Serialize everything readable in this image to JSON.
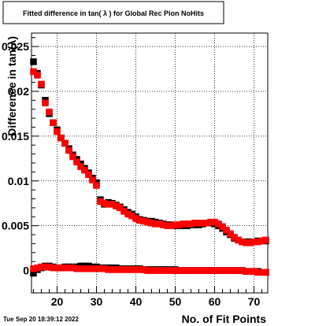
{
  "chart_data": {
    "type": "scatter",
    "title": "Fitted difference in tan( λ ) for Global Rec Pion NoHits",
    "xlabel": "No. of Fit Points",
    "ylabel": "Difference in tan(λ)",
    "xlim": [
      13.5,
      73.5
    ],
    "ylim": [
      -0.0025,
      0.0265
    ],
    "x_ticks": [
      20,
      30,
      40,
      50,
      60,
      70
    ],
    "y_ticks": [
      0,
      0.005,
      0.01,
      0.015,
      0.02,
      0.025
    ],
    "y_tick_labels": [
      "0",
      "0.005",
      "0.01",
      "0.015",
      "0.02",
      "0.025"
    ],
    "grid": true,
    "timestamp": "Tue Sep 20 18:39:12 2022",
    "series": [
      {
        "color": "#000000",
        "x": [
          14,
          15,
          16,
          17,
          18,
          19,
          20,
          21,
          22,
          23,
          24,
          25,
          26,
          27,
          28,
          29,
          30,
          31,
          32,
          33,
          34,
          35,
          36,
          37,
          38,
          39,
          40,
          41,
          42,
          43,
          44,
          45,
          46,
          47,
          48,
          49,
          50,
          51,
          52,
          53,
          54,
          55,
          56,
          57,
          58,
          59,
          60,
          61,
          62,
          63,
          64,
          65,
          66,
          67,
          68,
          69,
          70,
          71,
          72,
          73
        ],
        "y": [
          0.0233,
          0.022,
          0.0207,
          0.019,
          0.0175,
          0.0165,
          0.0157,
          0.0148,
          0.0142,
          0.0136,
          0.0129,
          0.0124,
          0.0119,
          0.0114,
          0.0109,
          0.0103,
          0.0098,
          0.0079,
          0.0074,
          0.0076,
          0.0075,
          0.0073,
          0.0071,
          0.0068,
          0.0065,
          0.0063,
          0.006,
          0.0057,
          0.0056,
          0.0055,
          0.0055,
          0.0054,
          0.0053,
          0.0052,
          0.0051,
          0.0051,
          0.005,
          0.005,
          0.005,
          0.005,
          0.0051,
          0.0051,
          0.0051,
          0.0052,
          0.0053,
          0.0053,
          0.0052,
          0.005,
          0.0047,
          0.0043,
          0.004,
          0.0036,
          0.0034,
          0.0032,
          0.0032,
          0.0032,
          0.0032,
          0.0033,
          0.0033,
          0.0033
        ]
      },
      {
        "color": "#ff0000",
        "x": [
          14,
          15,
          16,
          17,
          18,
          19,
          20,
          21,
          22,
          23,
          24,
          25,
          26,
          27,
          28,
          29,
          30,
          31,
          32,
          33,
          34,
          35,
          36,
          37,
          38,
          39,
          40,
          41,
          42,
          43,
          44,
          45,
          46,
          47,
          48,
          49,
          50,
          51,
          52,
          53,
          54,
          55,
          56,
          57,
          58,
          59,
          60,
          61,
          62,
          63,
          64,
          65,
          66,
          67,
          68,
          69,
          70,
          71,
          72,
          73
        ],
        "y": [
          0.0222,
          0.0218,
          0.0208,
          0.0187,
          0.0177,
          0.0165,
          0.0155,
          0.0148,
          0.0142,
          0.0134,
          0.0127,
          0.0121,
          0.0116,
          0.0112,
          0.0107,
          0.0101,
          0.0095,
          0.0077,
          0.0075,
          0.0074,
          0.0074,
          0.0072,
          0.007,
          0.0066,
          0.0063,
          0.0061,
          0.0058,
          0.0056,
          0.0055,
          0.0054,
          0.0053,
          0.0052,
          0.0052,
          0.0051,
          0.005,
          0.005,
          0.0051,
          0.0051,
          0.0052,
          0.0052,
          0.0052,
          0.0053,
          0.0053,
          0.0053,
          0.0053,
          0.0054,
          0.0054,
          0.0052,
          0.0049,
          0.0045,
          0.0041,
          0.0037,
          0.0034,
          0.0032,
          0.0031,
          0.0031,
          0.0032,
          0.0032,
          0.0033,
          0.0034
        ]
      },
      {
        "color": "#000000",
        "x": [
          14,
          15,
          16,
          17,
          18,
          19,
          20,
          21,
          22,
          23,
          24,
          25,
          26,
          27,
          28,
          29,
          30,
          31,
          32,
          33,
          34,
          35,
          36,
          37,
          38,
          39,
          40,
          41,
          42,
          43,
          44,
          45,
          46,
          47,
          48,
          49,
          50,
          51,
          52,
          53,
          54,
          55,
          56,
          57,
          58,
          59,
          60,
          61,
          62,
          63,
          64,
          65,
          66,
          67,
          68,
          69,
          70,
          71,
          72,
          73
        ],
        "y": [
          -0.0003,
          0.0001,
          0.0003,
          0.0005,
          0.0005,
          0.0004,
          0.0003,
          0.0003,
          0.0004,
          0.0004,
          0.0004,
          0.0004,
          0.0005,
          0.0005,
          0.0005,
          0.0004,
          0.0004,
          0.0003,
          0.0003,
          0.0003,
          0.0003,
          0.0003,
          0.0002,
          0.0002,
          0.0002,
          0.0002,
          0.0002,
          0.0002,
          0.0001,
          0.0001,
          0.0001,
          0.0001,
          0.0001,
          0.0001,
          0.0001,
          0.0001,
          0.0001,
          0.0,
          0.0,
          0.0,
          0.0,
          0.0,
          0.0,
          0.0,
          0.0,
          0.0,
          0.0,
          0.0,
          0.0,
          0.0,
          0.0,
          0.0,
          0.0,
          0.0,
          -0.0001,
          -0.0001,
          -0.0001,
          -0.0001,
          -0.0002,
          -0.0002
        ]
      },
      {
        "color": "#ff0000",
        "x": [
          14,
          15,
          16,
          17,
          18,
          19,
          20,
          21,
          22,
          23,
          24,
          25,
          26,
          27,
          28,
          29,
          30,
          31,
          32,
          33,
          34,
          35,
          36,
          37,
          38,
          39,
          40,
          41,
          42,
          43,
          44,
          45,
          46,
          47,
          48,
          49,
          50,
          51,
          52,
          53,
          54,
          55,
          56,
          57,
          58,
          59,
          60,
          61,
          62,
          63,
          64,
          65,
          66,
          67,
          68,
          69,
          70,
          71,
          72,
          73
        ],
        "y": [
          0.0002,
          0.0003,
          0.0004,
          0.0004,
          0.0004,
          0.0003,
          0.0003,
          0.0003,
          0.0003,
          0.0003,
          0.0003,
          0.0002,
          0.0002,
          0.0002,
          0.0002,
          0.0002,
          0.0002,
          0.0002,
          0.0002,
          0.0001,
          0.0001,
          0.0001,
          0.0001,
          0.0001,
          0.0001,
          0.0001,
          0.0001,
          0.0001,
          0.0001,
          0.0,
          0.0,
          0.0,
          0.0,
          0.0,
          0.0,
          0.0,
          0.0,
          0.0,
          0.0,
          0.0,
          0.0,
          0.0,
          0.0,
          0.0,
          0.0,
          0.0,
          0.0,
          0.0,
          0.0,
          0.0,
          0.0,
          0.0,
          0.0,
          0.0,
          -0.0001,
          -0.0001,
          -0.0001,
          -0.0002,
          -0.0002,
          -0.0002
        ]
      }
    ]
  }
}
